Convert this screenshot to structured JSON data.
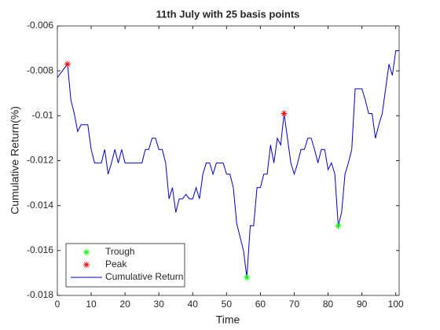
{
  "chart_data": {
    "type": "line",
    "title": "11th July with 25 basis points",
    "xlabel": "Time",
    "ylabel": "Cumulative Return(%)",
    "xlim": [
      0,
      101
    ],
    "xticks": [
      0,
      10,
      20,
      30,
      40,
      50,
      60,
      70,
      80,
      90,
      100
    ],
    "ylim": [
      -0.018,
      -0.006
    ],
    "yticks": [
      -0.018,
      -0.016,
      -0.014,
      -0.012,
      -0.01,
      -0.008,
      -0.006
    ],
    "legend": "southwest",
    "series": [
      {
        "name": "Trough",
        "color": "#00ff00",
        "marker": "*",
        "x": [
          56,
          83
        ],
        "values": [
          -0.0172,
          -0.0149
        ]
      },
      {
        "name": "Peak",
        "color": "#ff0000",
        "marker": "*",
        "x": [
          3,
          67
        ],
        "values": [
          -0.0077,
          -0.0099
        ]
      },
      {
        "name": "Cumulative Return",
        "color": "#0000cc",
        "x": [
          0,
          1,
          2,
          3,
          4,
          5,
          6,
          7,
          8,
          9,
          10,
          11,
          12,
          13,
          14,
          15,
          16,
          17,
          18,
          19,
          20,
          21,
          22,
          23,
          24,
          25,
          26,
          27,
          28,
          29,
          30,
          31,
          32,
          33,
          34,
          35,
          36,
          37,
          38,
          39,
          40,
          41,
          42,
          43,
          44,
          45,
          46,
          47,
          48,
          49,
          50,
          51,
          52,
          53,
          54,
          55,
          56,
          57,
          58,
          59,
          60,
          61,
          62,
          63,
          64,
          65,
          66,
          67,
          68,
          69,
          70,
          71,
          72,
          73,
          74,
          75,
          76,
          77,
          78,
          79,
          80,
          81,
          82,
          83,
          84,
          85,
          86,
          87,
          88,
          89,
          90,
          91,
          92,
          93,
          94,
          95,
          96,
          97,
          98,
          99,
          100,
          101
        ],
        "values": [
          -0.0083,
          -0.0081,
          -0.0079,
          -0.0077,
          -0.0093,
          -0.0099,
          -0.0107,
          -0.0104,
          -0.0104,
          -0.0104,
          -0.0115,
          -0.0121,
          -0.0121,
          -0.0121,
          -0.0115,
          -0.0126,
          -0.0121,
          -0.0115,
          -0.0121,
          -0.0115,
          -0.0121,
          -0.0121,
          -0.0121,
          -0.0121,
          -0.0121,
          -0.0121,
          -0.0115,
          -0.0115,
          -0.011,
          -0.011,
          -0.0115,
          -0.0115,
          -0.0121,
          -0.0137,
          -0.0132,
          -0.0143,
          -0.0137,
          -0.0137,
          -0.0135,
          -0.0137,
          -0.0137,
          -0.0132,
          -0.0137,
          -0.0126,
          -0.0121,
          -0.0121,
          -0.0126,
          -0.0121,
          -0.0121,
          -0.0121,
          -0.0126,
          -0.0126,
          -0.0132,
          -0.0148,
          -0.0154,
          -0.016,
          -0.0172,
          -0.0149,
          -0.0149,
          -0.0132,
          -0.0132,
          -0.0126,
          -0.0126,
          -0.0113,
          -0.0121,
          -0.011,
          -0.0113,
          -0.0099,
          -0.011,
          -0.0121,
          -0.0126,
          -0.0121,
          -0.0115,
          -0.0115,
          -0.011,
          -0.011,
          -0.0115,
          -0.0121,
          -0.0115,
          -0.0115,
          -0.0124,
          -0.0121,
          -0.0126,
          -0.0149,
          -0.0143,
          -0.0126,
          -0.0121,
          -0.0115,
          -0.0088,
          -0.0088,
          -0.0088,
          -0.0093,
          -0.0099,
          -0.0099,
          -0.011,
          -0.0104,
          -0.0099,
          -0.0088,
          -0.0077,
          -0.0082,
          -0.0071,
          -0.0071
        ]
      }
    ]
  }
}
